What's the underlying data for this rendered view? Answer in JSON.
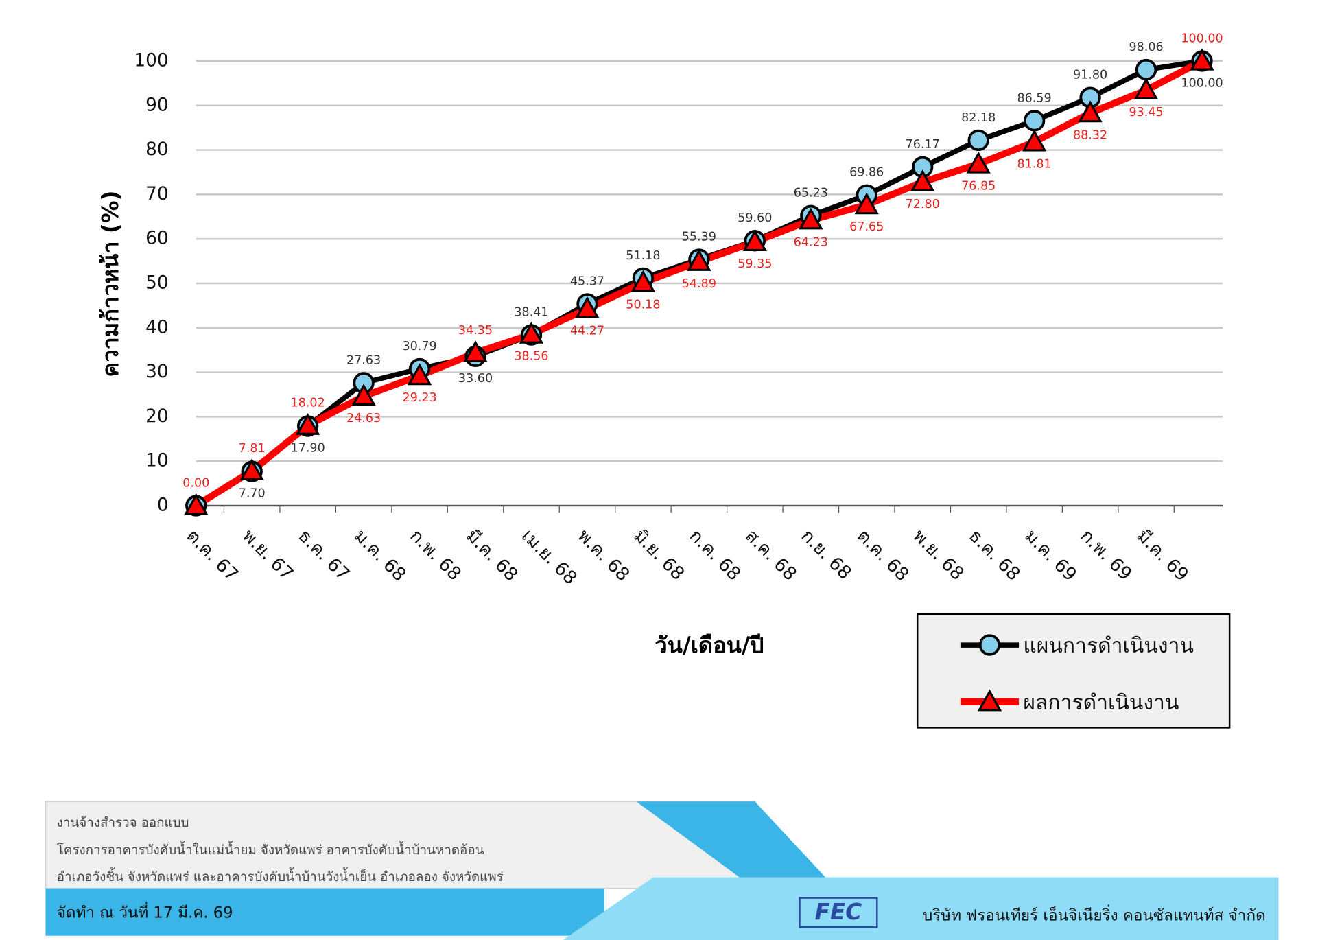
{
  "chart_data": {
    "type": "line",
    "ylabel": "ความก้าวหน้า (%)",
    "xlabel": "วัน/เดือน/ปี",
    "categories": [
      "ต.ค. 67",
      "พ.ย. 67",
      "ธ.ค. 67",
      "ม.ค. 68",
      "ก.พ. 68",
      "มี.ค. 68",
      "เม.ย. 68",
      "พ.ค. 68",
      "มิ.ย. 68",
      "ก.ค. 68",
      "ส.ค. 68",
      "ก.ย. 68",
      "ต.ค. 68",
      "พ.ย. 68",
      "ธ.ค. 68",
      "ม.ค. 69",
      "ก.พ. 69",
      "มี.ค. 69",
      null
    ],
    "series": [
      {
        "name": "แผนการดำเนินงาน",
        "color": "#000000",
        "marker_color": "#87ceeb",
        "values": [
          0,
          7.7,
          17.9,
          27.63,
          30.79,
          33.6,
          38.41,
          45.37,
          51.18,
          55.39,
          59.6,
          65.23,
          69.86,
          76.17,
          82.18,
          86.59,
          91.8,
          98.06,
          100
        ],
        "value_labels": [
          null,
          "7.70",
          "17.90",
          "27.63",
          "30.79",
          "33.60",
          "38.41",
          "45.37",
          "51.18",
          "55.39",
          "59.60",
          "65.23",
          "69.86",
          "76.17",
          "82.18",
          "86.59",
          "91.80",
          "98.06",
          "100.00"
        ]
      },
      {
        "name": "ผลการดำเนินงาน",
        "color": "#ff0000",
        "marker_color": "#ff0000",
        "values": [
          0,
          7.81,
          18.02,
          24.63,
          29.23,
          34.35,
          38.56,
          44.27,
          50.18,
          54.89,
          59.35,
          64.23,
          67.65,
          72.8,
          76.85,
          81.81,
          88.32,
          93.45,
          100
        ],
        "value_labels": [
          "0.00",
          "7.81",
          "18.02",
          "24.63",
          "29.23",
          "34.35",
          "38.56",
          "44.27",
          "50.18",
          "54.89",
          "59.35",
          "64.23",
          "67.65",
          "72.80",
          "76.85",
          "81.81",
          "88.32",
          "93.45",
          "100.00"
        ]
      }
    ],
    "ylim": [
      0,
      100
    ],
    "yticks": [
      0,
      10,
      20,
      30,
      40,
      50,
      60,
      70,
      80,
      90,
      100
    ],
    "grid": true
  },
  "footer": {
    "lines": [
      "งานจ้างสำรวจ ออกแบบ",
      "โครงการอาคารบังคับน้ำในแม่น้ำยม จังหวัดแพร่ อาคารบังคับน้ำบ้านหาดอ้อน",
      "อำเภอวังชิ้น จังหวัดแพร่ และอาคารบังคับน้ำบ้านวังน้ำเย็น อำเภอลอง จังหวัดแพร่"
    ],
    "date": "จัดทำ ณ วันที่ 17 มี.ค. 69",
    "logo": "FEC",
    "company": "บริษัท ฟรอนเทียร์ เอ็นจิเนียริ่ง คอนซัลแทนท์ส จำกัด"
  }
}
